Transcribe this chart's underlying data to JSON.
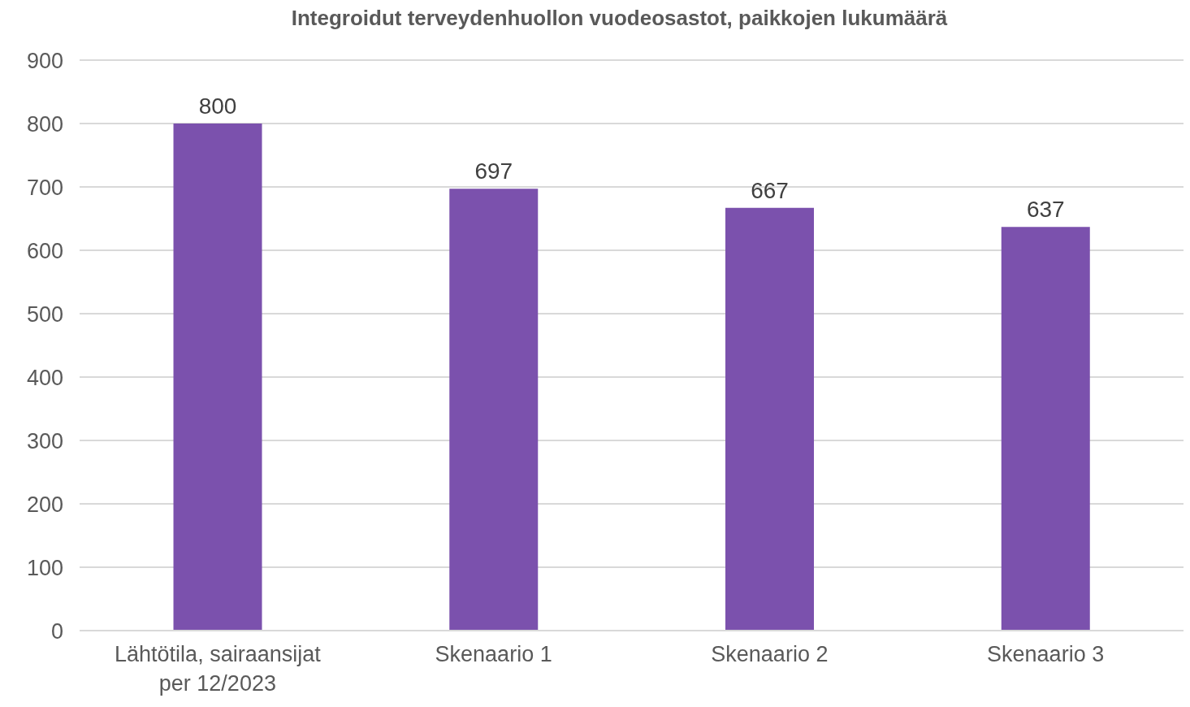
{
  "chart_data": {
    "type": "bar",
    "title": "Integroidut terveydenhuollon vuodeosastot, paikkojen lukumäärä",
    "categories": [
      "Lähtötila, sairaansijat per 12/2023",
      "Skenaario 1",
      "Skenaario 2",
      "Skenaario 3"
    ],
    "values": [
      800,
      697,
      667,
      637
    ],
    "color": "#7b51ad",
    "ylim": [
      0,
      900
    ],
    "yticks": [
      0,
      100,
      200,
      300,
      400,
      500,
      600,
      700,
      800,
      900
    ],
    "grid": "y",
    "data_labels": true
  }
}
